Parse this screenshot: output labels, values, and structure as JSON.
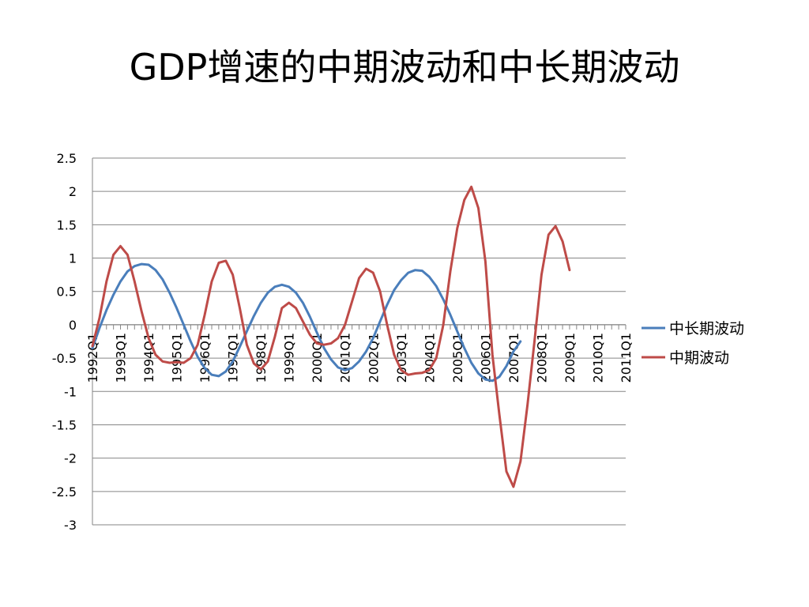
{
  "slide": {
    "title": "GDP增速的中期波动和中长期波动"
  },
  "chart_data": {
    "type": "line",
    "title": "",
    "xlabel": "",
    "ylabel": "",
    "ylim": [
      -3,
      2.5
    ],
    "ytick_step": 0.5,
    "grid": true,
    "legend_position": "right",
    "x_labels": [
      "1992Q1",
      "1993Q1",
      "1994Q1",
      "1995Q1",
      "1996Q1",
      "1997Q1",
      "1998Q1",
      "1999Q1",
      "2000Q1",
      "2001Q1",
      "2002Q1",
      "2003Q1",
      "2004Q1",
      "2005Q1",
      "2006Q1",
      "2007Q1",
      "2008Q1",
      "2009Q1",
      "2010Q1",
      "2011Q1"
    ],
    "x_label_step": 4,
    "series": [
      {
        "name": "中长期波动",
        "color": "#4A7EBB",
        "values": [
          -0.35,
          -0.05,
          0.22,
          0.45,
          0.65,
          0.8,
          0.88,
          0.91,
          0.9,
          0.82,
          0.68,
          0.48,
          0.25,
          0.0,
          -0.25,
          -0.48,
          -0.65,
          -0.75,
          -0.77,
          -0.7,
          -0.55,
          -0.33,
          -0.1,
          0.13,
          0.33,
          0.48,
          0.57,
          0.6,
          0.57,
          0.48,
          0.33,
          0.12,
          -0.12,
          -0.35,
          -0.52,
          -0.64,
          -0.68,
          -0.65,
          -0.55,
          -0.4,
          -0.2,
          0.05,
          0.3,
          0.52,
          0.67,
          0.78,
          0.82,
          0.81,
          0.72,
          0.58,
          0.38,
          0.15,
          -0.1,
          -0.35,
          -0.57,
          -0.73,
          -0.82,
          -0.84,
          -0.78,
          -0.62,
          -0.4,
          -0.25
        ]
      },
      {
        "name": "中期波动",
        "color": "#BE4B48",
        "values": [
          -0.32,
          0.1,
          0.65,
          1.05,
          1.18,
          1.05,
          0.65,
          0.2,
          -0.2,
          -0.45,
          -0.55,
          -0.57,
          -0.56,
          -0.57,
          -0.5,
          -0.3,
          0.15,
          0.65,
          0.93,
          0.96,
          0.75,
          0.25,
          -0.3,
          -0.58,
          -0.67,
          -0.55,
          -0.18,
          0.25,
          0.33,
          0.25,
          0.05,
          -0.15,
          -0.28,
          -0.3,
          -0.28,
          -0.2,
          0.0,
          0.35,
          0.7,
          0.84,
          0.78,
          0.5,
          0.0,
          -0.45,
          -0.68,
          -0.75,
          -0.73,
          -0.72,
          -0.68,
          -0.5,
          0.0,
          0.8,
          1.45,
          1.87,
          2.07,
          1.75,
          0.95,
          -0.45,
          -1.35,
          -2.2,
          -2.43,
          -2.05,
          -1.2,
          -0.25,
          0.75,
          1.35,
          1.48,
          1.25,
          0.82
        ]
      }
    ]
  }
}
